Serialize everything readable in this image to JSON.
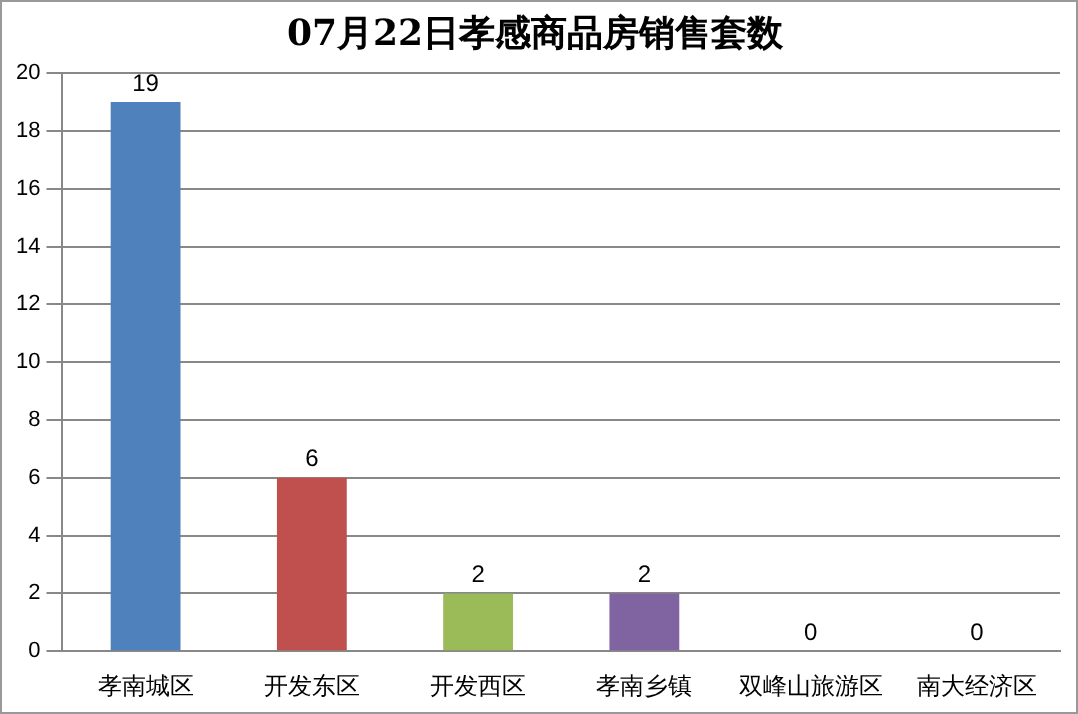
{
  "chart_data": {
    "type": "bar",
    "title": "07月22日孝感商品房销售套数",
    "categories": [
      "孝南城区",
      "开发东区",
      "开发西区",
      "孝南乡镇",
      "双峰山旅游区",
      "南大经济区"
    ],
    "values": [
      19,
      6,
      2,
      2,
      0,
      0
    ],
    "colors": [
      "#4f81bd",
      "#c0504d",
      "#9bbb59",
      "#8064a2",
      "#4bacc6",
      "#f79646"
    ],
    "ylim": [
      0,
      20
    ],
    "yticks": [
      0,
      2,
      4,
      6,
      8,
      10,
      12,
      14,
      16,
      18,
      20
    ],
    "grid": "y",
    "data_labels": true,
    "legend": false
  }
}
